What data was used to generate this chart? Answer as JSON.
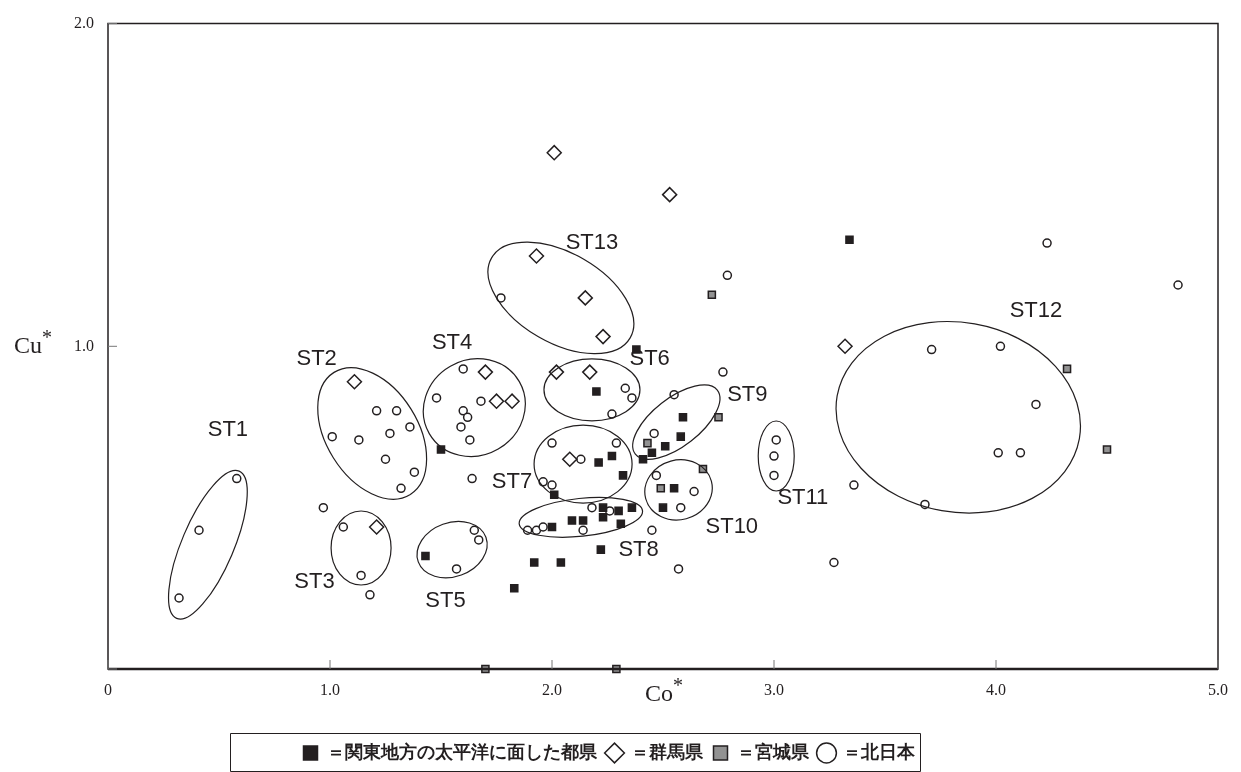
{
  "chart_data": {
    "type": "scatter",
    "xlabel": "Co$^{*}$",
    "ylabel": "Cu$^{*}$",
    "xlim": [
      0,
      5
    ],
    "ylim": [
      0,
      2
    ],
    "xticks": [
      0,
      {
        "value": 1,
        "label": "1.0"
      },
      {
        "value": 2,
        "label": "2.0"
      },
      {
        "value": 3,
        "label": "3.0"
      },
      {
        "value": 4,
        "label": "4.0"
      },
      {
        "value": 5,
        "label": "5.0"
      }
    ],
    "yticks": [
      {
        "value": 0,
        "label": null
      },
      {
        "value": 1,
        "label": "1.0"
      },
      {
        "value": 2,
        "label": "2.0"
      }
    ],
    "grid": false,
    "legend": "bottom",
    "series": [
      {
        "name": "＝関東地方の太平洋に面した都県",
        "color": "#231f20",
        "marker": "square",
        "x": [
          1.5,
          1.43,
          1.83,
          2.2,
          2.59,
          2.58,
          2.51,
          2.45,
          2.41,
          2.27,
          2.21,
          2.32,
          2.01,
          2.55,
          2.5,
          2.36,
          2.3,
          2.23,
          2.23,
          2.31,
          2.14,
          2.09,
          2.0,
          2.22,
          1.92,
          2.04,
          3.34,
          2.38
        ],
        "values": [
          0.68,
          0.35,
          0.25,
          0.86,
          0.78,
          0.72,
          0.69,
          0.67,
          0.65,
          0.66,
          0.64,
          0.6,
          0.54,
          0.56,
          0.5,
          0.5,
          0.49,
          0.5,
          0.47,
          0.45,
          0.46,
          0.46,
          0.44,
          0.37,
          0.33,
          0.33,
          1.33,
          0.99
        ]
      },
      {
        "name": "＝群馬県",
        "color": "#ffffff",
        "marker": "diamond",
        "x": [
          2.01,
          2.53,
          1.93,
          2.15,
          2.23,
          1.11,
          1.7,
          1.75,
          1.82,
          2.02,
          2.17,
          2.08,
          1.21,
          3.32
        ],
        "values": [
          1.6,
          1.47,
          1.28,
          1.15,
          1.03,
          0.89,
          0.92,
          0.83,
          0.83,
          0.92,
          0.92,
          0.65,
          0.44,
          1.0
        ]
      },
      {
        "name": "＝宮城県",
        "color": "#929292",
        "marker": "square",
        "x": [
          2.43,
          2.49,
          2.68,
          2.75,
          2.72,
          4.32,
          4.5,
          1.7,
          2.29
        ],
        "values": [
          0.7,
          0.56,
          0.62,
          0.78,
          1.16,
          0.93,
          0.68,
          0.0,
          0.0
        ]
      },
      {
        "name": "＝北日本",
        "color": "#ffffff",
        "marker": "circle",
        "x": [
          0.58,
          0.41,
          0.32,
          1.01,
          1.13,
          1.21,
          1.3,
          1.27,
          1.36,
          1.25,
          1.38,
          1.32,
          0.97,
          1.06,
          1.14,
          1.18,
          1.48,
          1.6,
          1.68,
          1.6,
          1.62,
          1.59,
          1.63,
          1.64,
          1.65,
          1.67,
          1.57,
          2.33,
          2.36,
          2.27,
          2.77,
          2.55,
          2.46,
          2.0,
          2.29,
          2.13,
          1.96,
          2.0,
          2.47,
          2.64,
          2.58,
          1.89,
          1.93,
          1.96,
          2.14,
          2.18,
          2.26,
          2.45,
          2.57,
          2.79,
          1.77,
          4.23,
          4.82,
          3.71,
          4.02,
          4.18,
          4.01,
          4.11,
          3.68,
          3.36,
          3.27,
          3.01,
          3.0,
          3.0
        ],
        "values": [
          0.59,
          0.43,
          0.22,
          0.72,
          0.71,
          0.8,
          0.8,
          0.73,
          0.75,
          0.65,
          0.61,
          0.56,
          0.5,
          0.44,
          0.29,
          0.23,
          0.84,
          0.93,
          0.83,
          0.8,
          0.78,
          0.75,
          0.71,
          0.59,
          0.43,
          0.4,
          0.31,
          0.87,
          0.84,
          0.79,
          0.92,
          0.85,
          0.73,
          0.7,
          0.7,
          0.65,
          0.58,
          0.57,
          0.6,
          0.55,
          0.5,
          0.43,
          0.43,
          0.44,
          0.43,
          0.5,
          0.49,
          0.43,
          0.31,
          1.22,
          1.15,
          1.32,
          1.19,
          0.99,
          1.0,
          0.82,
          0.67,
          0.67,
          0.51,
          0.57,
          0.33,
          0.71,
          0.66,
          0.6
        ]
      }
    ],
    "annotations": [
      "ST1",
      "ST2",
      "ST3",
      "ST4",
      "ST5",
      "ST6",
      "ST7",
      "ST8",
      "ST9",
      "ST10",
      "ST11",
      "ST12",
      "ST13"
    ]
  }
}
